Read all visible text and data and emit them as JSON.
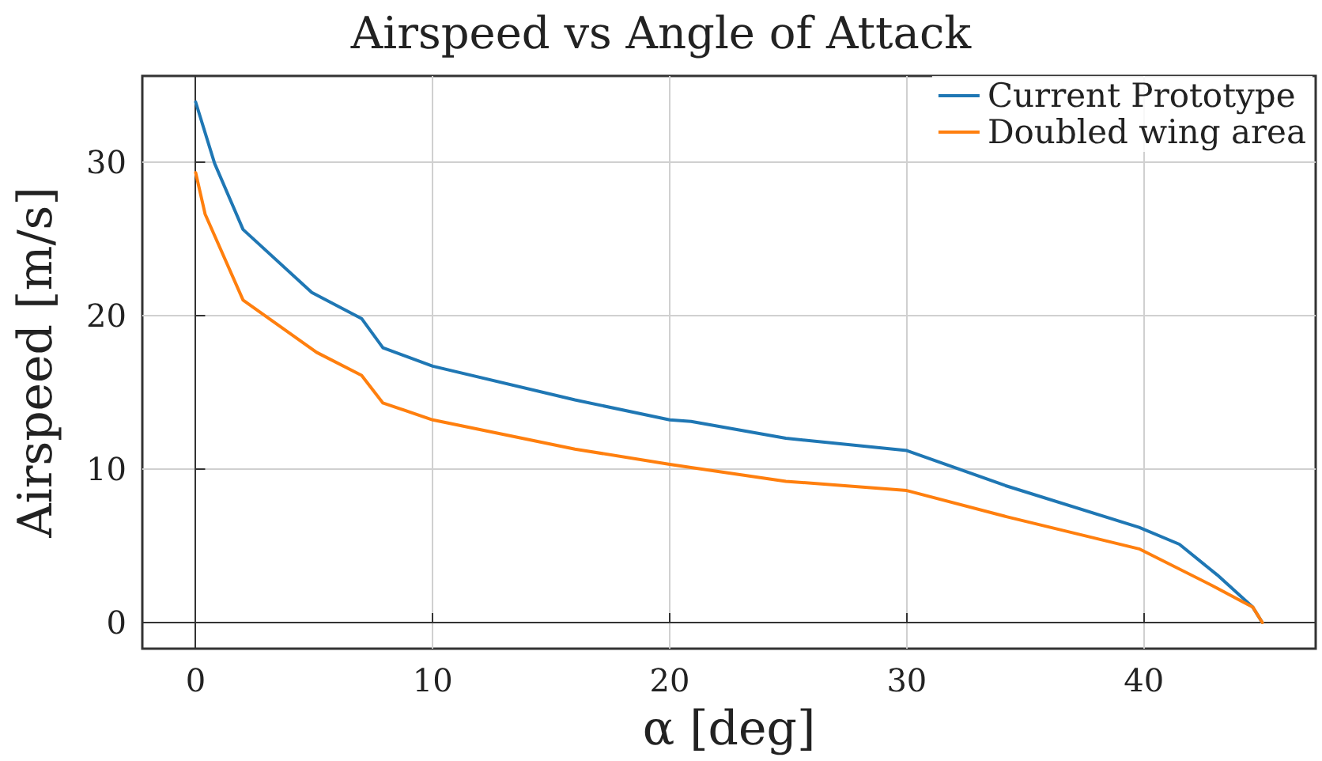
{
  "chart_data": {
    "type": "line",
    "title": "Airspeed vs Angle of Attack",
    "xlabel": "α [deg]",
    "ylabel": "Airspeed [m/s]",
    "series": [
      {
        "name": "Current Prototype",
        "color": "#1f77b4",
        "x": [
          0,
          0.8,
          2,
          4.9,
          7,
          7.9,
          10,
          16,
          20,
          20.9,
          24.9,
          30,
          34.2,
          39.8,
          41.5,
          43.1,
          44.6,
          45
        ],
        "values": [
          33.9,
          29.9,
          25.6,
          21.5,
          19.8,
          17.9,
          16.7,
          14.5,
          13.2,
          13.1,
          12.0,
          11.2,
          8.9,
          6.2,
          5.1,
          3.1,
          1.0,
          0
        ]
      },
      {
        "name": "Doubled wing area",
        "color": "#ff7f0e",
        "x": [
          0,
          0.4,
          2,
          5.1,
          7,
          7.9,
          10,
          16,
          20,
          20.9,
          24.9,
          30,
          34.2,
          39.8,
          42.9,
          44.6,
          45
        ],
        "values": [
          29.3,
          26.6,
          21.0,
          17.6,
          16.1,
          14.3,
          13.2,
          11.3,
          10.3,
          10.1,
          9.2,
          8.6,
          6.9,
          4.8,
          2.4,
          1.0,
          0
        ]
      }
    ],
    "xlim": [
      -2.25,
      47.25
    ],
    "ylim": [
      -1.7,
      35.6
    ],
    "xticks": [
      0,
      10,
      20,
      30,
      40
    ],
    "yticks": [
      0,
      10,
      20,
      30
    ],
    "grid": true,
    "legend": "top right",
    "marker": "none",
    "line_style": "solid"
  }
}
